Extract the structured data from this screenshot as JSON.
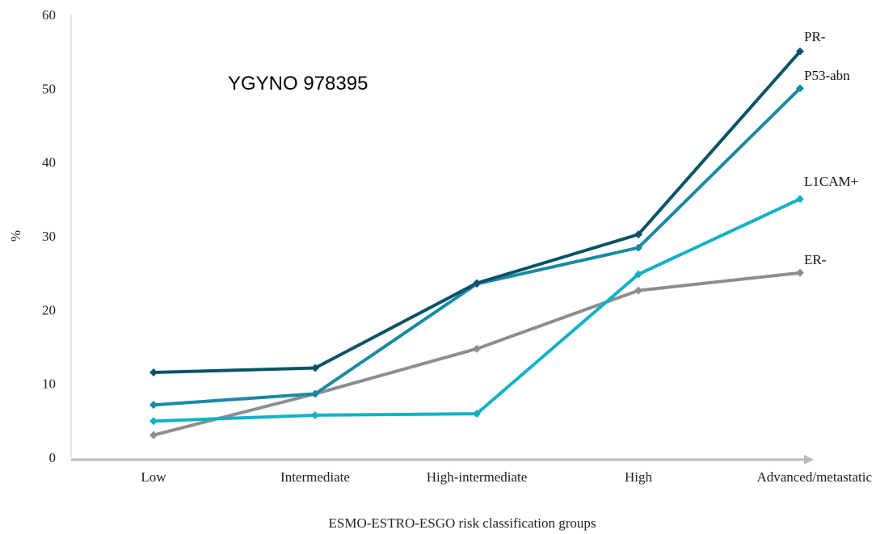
{
  "chart_data": {
    "type": "line",
    "annotation": "YGYNO 978395",
    "xlabel": "ESMO-ESTRO-ESGO risk classification groups",
    "ylabel": "%",
    "ylim": [
      0,
      60
    ],
    "yticks": [
      0,
      10,
      20,
      30,
      40,
      50,
      60
    ],
    "categories": [
      "Low",
      "Intermediate",
      "High-intermediate",
      "High",
      "Advanced/metastatic"
    ],
    "grid": false,
    "legend": "end-of-line labels",
    "series": [
      {
        "name": "PR-",
        "color": "#0b5368",
        "values": [
          11.5,
          12.1,
          23.6,
          30.2,
          55.0
        ]
      },
      {
        "name": "P53-abn",
        "color": "#1a8aa3",
        "values": [
          7.1,
          8.6,
          23.5,
          28.4,
          50.0
        ]
      },
      {
        "name": "L1CAM+",
        "color": "#12b2c5",
        "values": [
          4.9,
          5.7,
          5.9,
          24.8,
          35.0
        ]
      },
      {
        "name": "ER-",
        "color": "#8c8e91",
        "values": [
          3.0,
          8.6,
          14.7,
          22.6,
          25.0
        ]
      }
    ]
  }
}
